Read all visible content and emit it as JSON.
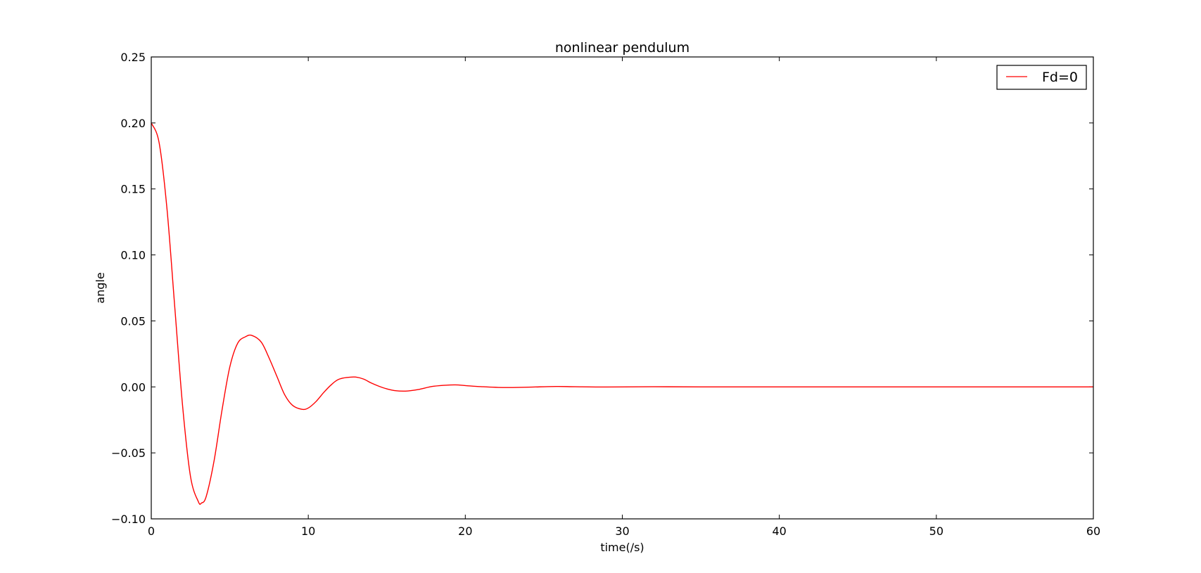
{
  "chart_data": {
    "type": "line",
    "title": "nonlinear pendulum",
    "xlabel": "time(/s)",
    "ylabel": "angle",
    "xlim": [
      0,
      60
    ],
    "ylim": [
      -0.1,
      0.25
    ],
    "xticks": [
      0,
      10,
      20,
      30,
      40,
      50,
      60
    ],
    "xtick_labels": [
      "0",
      "10",
      "20",
      "30",
      "40",
      "50",
      "60"
    ],
    "yticks": [
      -0.1,
      -0.05,
      0.0,
      0.05,
      0.1,
      0.15,
      0.2,
      0.25
    ],
    "ytick_labels": [
      "−0.10",
      "−0.05",
      "0.00",
      "0.05",
      "0.10",
      "0.15",
      "0.20",
      "0.25"
    ],
    "grid": false,
    "legend_position": "top-right",
    "series": [
      {
        "name": "Fd=0",
        "color": "#ff0000",
        "x": [
          0,
          0.5,
          1,
          1.5,
          2,
          2.5,
          3,
          3.2,
          3.5,
          4,
          4.5,
          5,
          5.5,
          6,
          6.4,
          7,
          7.5,
          8,
          8.5,
          9,
          9.6,
          10,
          10.5,
          11,
          11.5,
          12,
          12.9,
          13.5,
          14,
          14.5,
          15,
          15.5,
          16.2,
          17,
          18,
          19.3,
          20,
          21,
          22.5,
          24,
          25.8,
          27,
          29,
          32,
          35,
          40,
          45,
          50,
          55,
          60
        ],
        "y": [
          0.2,
          0.185,
          0.135,
          0.06,
          -0.015,
          -0.068,
          -0.087,
          -0.088,
          -0.083,
          -0.056,
          -0.018,
          0.015,
          0.033,
          0.038,
          0.039,
          0.034,
          0.022,
          0.008,
          -0.006,
          -0.014,
          -0.017,
          -0.016,
          -0.011,
          -0.004,
          0.002,
          0.006,
          0.0075,
          0.006,
          0.003,
          0.0005,
          -0.0015,
          -0.0028,
          -0.0032,
          -0.002,
          0.0005,
          0.0015,
          0.001,
          0.0002,
          -0.0005,
          -0.0002,
          0.0003,
          0.0001,
          -0.0001,
          0.0001,
          0.0,
          0.0,
          0.0,
          0.0,
          0.0,
          0.0
        ]
      }
    ]
  }
}
